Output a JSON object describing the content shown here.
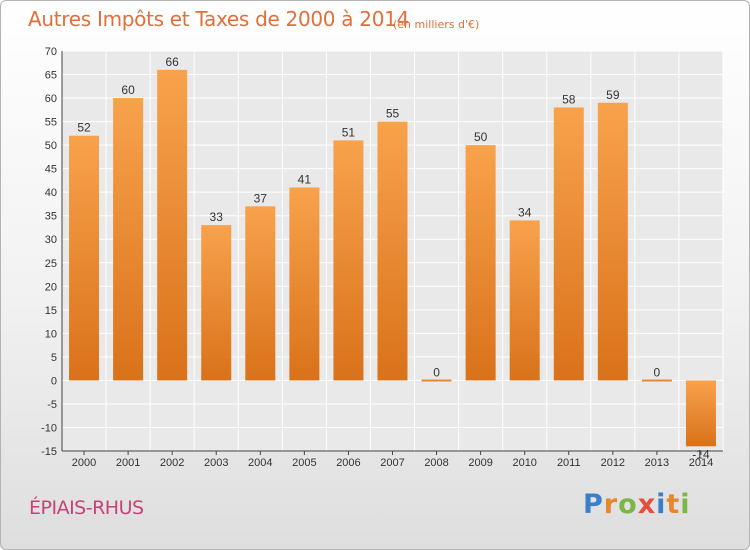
{
  "header": {
    "title": "Autres Impôts et Taxes de 2000 à 2014",
    "subtitle": "(en milliers d'€)"
  },
  "footer": {
    "commune": "ÉPIAIS-RHUS",
    "logo_letters": [
      "P",
      "r",
      "o",
      "x",
      "i",
      "t",
      "i"
    ],
    "logo_colors": [
      "#3b7fcb",
      "#e8862a",
      "#7ab648",
      "#e84c3d",
      "#3b7fcb",
      "#e8862a",
      "#7ab648"
    ]
  },
  "colors": {
    "bar_light": "#f8a24c",
    "bar_dark": "#d9721a",
    "grid": "#ffffff",
    "accent": "#e26f3a",
    "commune": "#c7427a"
  },
  "chart_data": {
    "type": "bar",
    "title": "Autres Impôts et Taxes de 2000 à 2014",
    "subtitle": "(en milliers d'€)",
    "xlabel": "",
    "ylabel": "",
    "categories": [
      "2000",
      "2001",
      "2002",
      "2003",
      "2004",
      "2005",
      "2006",
      "2007",
      "2008",
      "2009",
      "2010",
      "2011",
      "2012",
      "2013",
      "2014"
    ],
    "values": [
      52,
      60,
      66,
      33,
      37,
      41,
      51,
      55,
      0,
      50,
      34,
      58,
      59,
      0,
      -14
    ],
    "value_labels": [
      "52",
      "60",
      "66",
      "33",
      "37",
      "41",
      "51",
      "55",
      "0",
      "50",
      "34",
      "58",
      "59",
      "0",
      "-14"
    ],
    "ylim": [
      -15,
      70
    ],
    "yticks": [
      -15,
      -10,
      -5,
      0,
      5,
      10,
      15,
      20,
      25,
      30,
      35,
      40,
      45,
      50,
      55,
      60,
      65,
      70
    ],
    "grid": true,
    "legend": "none"
  }
}
